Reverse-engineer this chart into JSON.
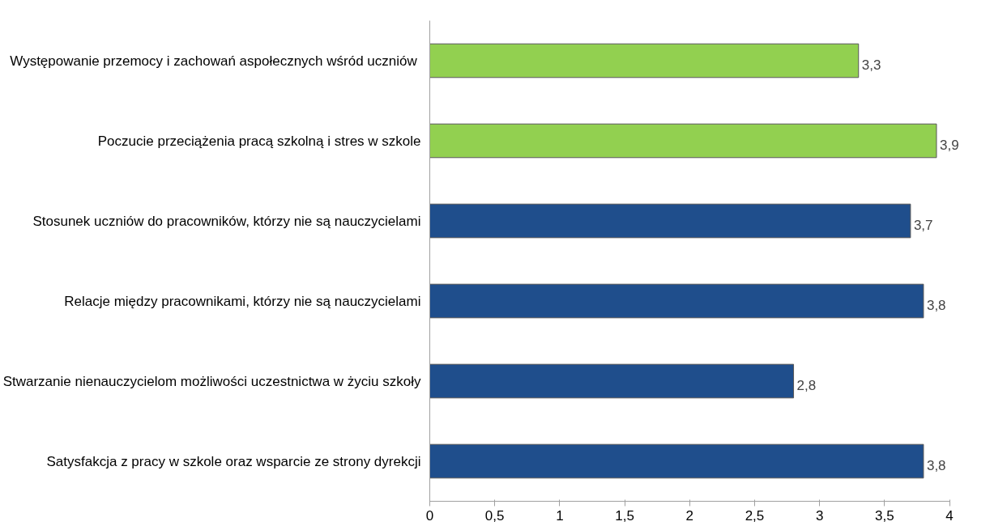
{
  "chart_data": {
    "type": "bar",
    "orientation": "horizontal",
    "categories": [
      "Występowanie przemocy i  zachowań aspołecznych wśród uczniów",
      "Poczucie przeciążenia pracą szkolną i stres w szkole",
      "Stosunek uczniów do pracowników, którzy nie są nauczycielami",
      "Relacje między pracownikami, którzy nie są nauczycielami",
      "Stwarzanie nienauczycielom możliwości uczestnictwa w życiu szkoły",
      "Satysfakcja z pracy w szkole oraz wsparcie ze strony dyrekcji"
    ],
    "values": [
      3.3,
      3.9,
      3.7,
      3.8,
      2.8,
      3.8
    ],
    "colors": [
      "#92d050",
      "#92d050",
      "#1f4e8c",
      "#1f4e8c",
      "#1f4e8c",
      "#1f4e8c"
    ],
    "value_labels": [
      "3,3",
      "3,9",
      "3,7",
      "3,8",
      "2,8",
      "3,8"
    ],
    "xlim": [
      0,
      4
    ],
    "xticks": [
      0,
      {
        "value": 0.5,
        "label": "0,5"
      },
      1,
      {
        "value": 1.5,
        "label": "1,5"
      },
      2,
      {
        "value": 2.5,
        "label": "2,5"
      },
      3,
      {
        "value": 3.5,
        "label": "3,5"
      },
      4
    ],
    "grid": false
  }
}
